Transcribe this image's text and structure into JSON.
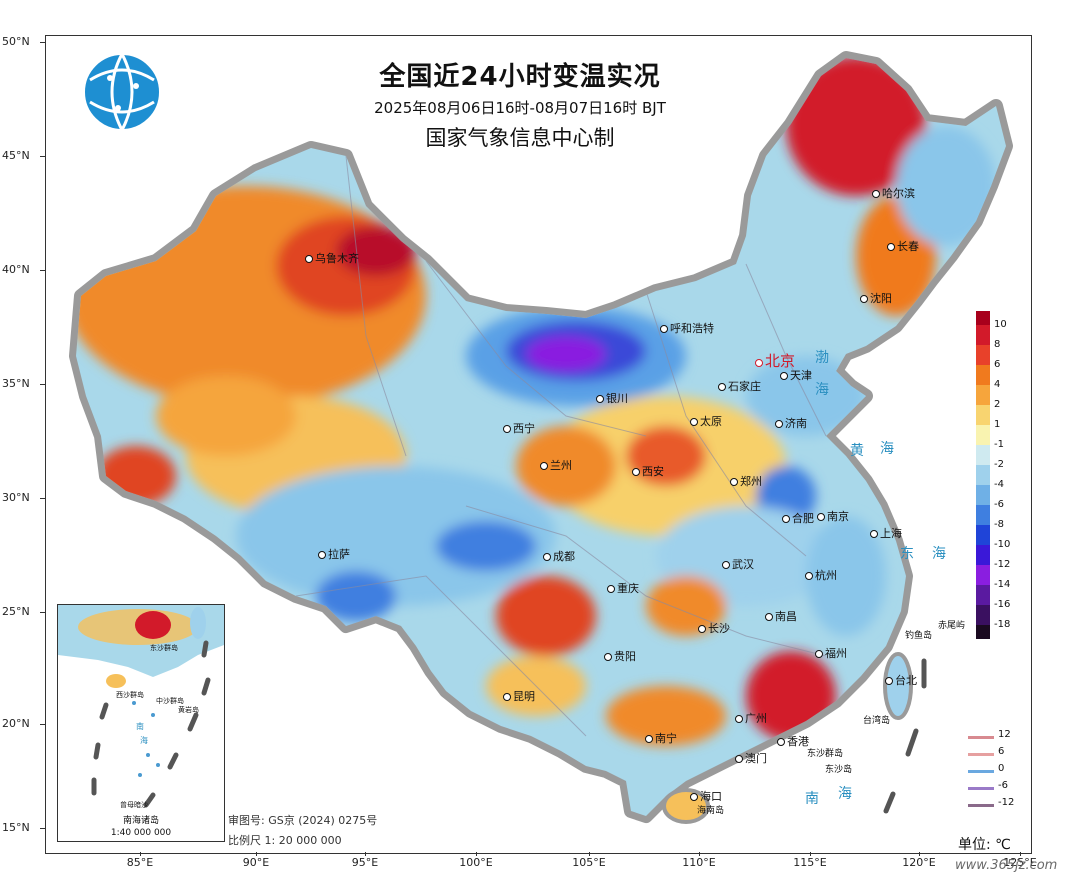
{
  "title": "全国近24小时变温实况",
  "subtitle": "2025年08月06日16时-08月07日16时 BJT",
  "producer": "国家气象信息中心制",
  "lat_labels": [
    "50°N",
    "45°N",
    "40°N",
    "35°N",
    "30°N",
    "25°N",
    "20°N",
    "15°N"
  ],
  "lon_labels": [
    "85°E",
    "90°E",
    "95°E",
    "100°E",
    "105°E",
    "110°E",
    "115°E",
    "120°E",
    "125°E"
  ],
  "cities": [
    {
      "name": "乌鲁木齐",
      "temp_change": "warm"
    },
    {
      "name": "哈尔滨",
      "temp_change": "warm"
    },
    {
      "name": "长春",
      "temp_change": "warm"
    },
    {
      "name": "沈阳",
      "temp_change": "warm"
    },
    {
      "name": "呼和浩特",
      "temp_change": "cool"
    },
    {
      "name": "北京",
      "temp_change": "cool"
    },
    {
      "name": "天津",
      "temp_change": "cool"
    },
    {
      "name": "石家庄",
      "temp_change": "cool"
    },
    {
      "name": "银川",
      "temp_change": "cool"
    },
    {
      "name": "太原",
      "temp_change": "warm"
    },
    {
      "name": "济南",
      "temp_change": "cool"
    },
    {
      "name": "西宁",
      "temp_change": "cool"
    },
    {
      "name": "兰州",
      "temp_change": "warm"
    },
    {
      "name": "西安",
      "temp_change": "warm"
    },
    {
      "name": "郑州",
      "temp_change": "cool"
    },
    {
      "name": "合肥",
      "temp_change": "cool"
    },
    {
      "name": "南京",
      "temp_change": "cool"
    },
    {
      "name": "上海",
      "temp_change": "cool"
    },
    {
      "name": "拉萨",
      "temp_change": "cool"
    },
    {
      "name": "成都",
      "temp_change": "cool"
    },
    {
      "name": "武汉",
      "temp_change": "cool"
    },
    {
      "name": "杭州",
      "temp_change": "cool"
    },
    {
      "name": "重庆",
      "temp_change": "warm"
    },
    {
      "name": "长沙",
      "temp_change": "cool"
    },
    {
      "name": "南昌",
      "temp_change": "cool"
    },
    {
      "name": "贵阳",
      "temp_change": "cool"
    },
    {
      "name": "福州",
      "temp_change": "warm"
    },
    {
      "name": "昆明",
      "temp_change": "cool"
    },
    {
      "name": "台北",
      "temp_change": "cool"
    },
    {
      "name": "广州",
      "temp_change": "warm"
    },
    {
      "name": "南宁",
      "temp_change": "warm"
    },
    {
      "name": "香港",
      "temp_change": "cool"
    },
    {
      "name": "澳门",
      "temp_change": "cool"
    },
    {
      "name": "海口",
      "temp_change": "cool"
    }
  ],
  "islands": [
    "钓鱼岛",
    "赤尾屿",
    "台湾岛",
    "东沙群岛",
    "东沙岛",
    "海南岛"
  ],
  "seas": [
    "渤",
    "海",
    "黄",
    "海",
    "东",
    "海",
    "南",
    "海"
  ],
  "legend": {
    "labels": [
      "10",
      "8",
      "6",
      "4",
      "2",
      "1",
      "-1",
      "-2",
      "-4",
      "-6",
      "-8",
      "-10",
      "-12",
      "-14",
      "-16",
      "-18"
    ],
    "colors": [
      "#a8001c",
      "#d21a2a",
      "#e8412a",
      "#f07a1e",
      "#f6a53c",
      "#f8d470",
      "#f9f3b0",
      "#cfeaf0",
      "#9fd1ec",
      "#6fb0e6",
      "#3f7fe0",
      "#1f44d8",
      "#3a18d8",
      "#8a1ee0",
      "#5a1aa0",
      "#3a1060",
      "#1a0a20"
    ]
  },
  "line_legend": [
    {
      "label": "12",
      "color": "#d88a90"
    },
    {
      "label": "6",
      "color": "#e6a0a0"
    },
    {
      "label": "0",
      "color": "#6aa8e0"
    },
    {
      "label": "-6",
      "color": "#9a7ac8"
    },
    {
      "label": "-12",
      "color": "#8a6a8a"
    }
  ],
  "inset": {
    "name": "南海诸岛",
    "scale": "1:40 000 000",
    "labels": [
      "东沙群岛",
      "西沙群岛",
      "中沙群岛",
      "黄岩岛",
      "南",
      "海",
      "曾母暗沙"
    ]
  },
  "review_no": "审图号: GS京 (2024) 0275号",
  "scale": "比例尺 1: 20 000 000",
  "unit": "单位: ℃",
  "watermark": "www.365jz.com"
}
